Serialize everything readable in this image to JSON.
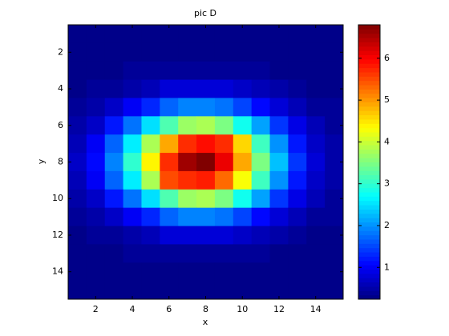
{
  "chart_data": {
    "type": "heatmap",
    "title": "pic D",
    "xlabel": "x",
    "ylabel": "y",
    "xlim": [
      0.5,
      15.5
    ],
    "ylim": [
      0.5,
      15.5
    ],
    "y_reversed": true,
    "xticks": [
      2,
      4,
      6,
      8,
      10,
      12,
      14
    ],
    "yticks": [
      2,
      4,
      6,
      8,
      10,
      12,
      14
    ],
    "colormap": "jet",
    "clim": [
      0.24,
      6.8
    ],
    "cticks": [
      1,
      2,
      3,
      4,
      5,
      6
    ],
    "z": [
      [
        0.3,
        0.3,
        0.3,
        0.3,
        0.3,
        0.3,
        0.3,
        0.3,
        0.3,
        0.3,
        0.3,
        0.3,
        0.3,
        0.3,
        0.3
      ],
      [
        0.3,
        0.3,
        0.3,
        0.3,
        0.3,
        0.3,
        0.3,
        0.3,
        0.3,
        0.3,
        0.3,
        0.3,
        0.3,
        0.3,
        0.3
      ],
      [
        0.3,
        0.3,
        0.3,
        0.4,
        0.4,
        0.4,
        0.4,
        0.4,
        0.4,
        0.4,
        0.4,
        0.3,
        0.3,
        0.3,
        0.3
      ],
      [
        0.3,
        0.4,
        0.4,
        0.5,
        0.6,
        0.8,
        0.8,
        0.8,
        0.8,
        0.7,
        0.6,
        0.5,
        0.4,
        0.3,
        0.3
      ],
      [
        0.4,
        0.5,
        0.7,
        1.0,
        1.3,
        1.7,
        1.9,
        1.9,
        1.8,
        1.5,
        1.1,
        0.8,
        0.6,
        0.4,
        0.4
      ],
      [
        0.5,
        0.7,
        1.2,
        1.8,
        2.5,
        3.2,
        3.7,
        3.8,
        3.5,
        2.8,
        2.1,
        1.4,
        0.9,
        0.6,
        0.4
      ],
      [
        0.6,
        1.0,
        1.7,
        2.6,
        3.8,
        4.9,
        5.7,
        5.9,
        5.7,
        4.6,
        3.1,
        2.0,
        1.2,
        0.7,
        0.5
      ],
      [
        0.7,
        1.1,
        1.9,
        3.0,
        4.4,
        5.7,
        6.6,
        6.8,
        6.1,
        4.9,
        3.5,
        2.3,
        1.4,
        0.8,
        0.5
      ],
      [
        0.6,
        1.0,
        1.7,
        2.6,
        3.8,
        5.5,
        5.7,
        5.8,
        5.3,
        4.3,
        3.1,
        2.0,
        1.2,
        0.7,
        0.5
      ],
      [
        0.5,
        0.7,
        1.2,
        1.8,
        2.5,
        3.2,
        3.7,
        3.8,
        3.5,
        2.8,
        2.1,
        1.4,
        0.9,
        0.6,
        0.4
      ],
      [
        0.4,
        0.5,
        0.7,
        1.0,
        1.3,
        1.7,
        1.9,
        1.9,
        1.8,
        1.5,
        1.1,
        0.8,
        0.6,
        0.4,
        0.4
      ],
      [
        0.3,
        0.4,
        0.4,
        0.5,
        0.6,
        0.8,
        0.8,
        0.8,
        0.8,
        0.7,
        0.6,
        0.5,
        0.4,
        0.3,
        0.3
      ],
      [
        0.3,
        0.3,
        0.3,
        0.4,
        0.4,
        0.4,
        0.4,
        0.4,
        0.4,
        0.4,
        0.4,
        0.3,
        0.3,
        0.3,
        0.3
      ],
      [
        0.3,
        0.3,
        0.3,
        0.3,
        0.3,
        0.3,
        0.3,
        0.3,
        0.3,
        0.3,
        0.3,
        0.3,
        0.3,
        0.3,
        0.3
      ],
      [
        0.3,
        0.3,
        0.3,
        0.3,
        0.3,
        0.3,
        0.3,
        0.3,
        0.3,
        0.3,
        0.3,
        0.3,
        0.3,
        0.3,
        0.3
      ]
    ]
  }
}
